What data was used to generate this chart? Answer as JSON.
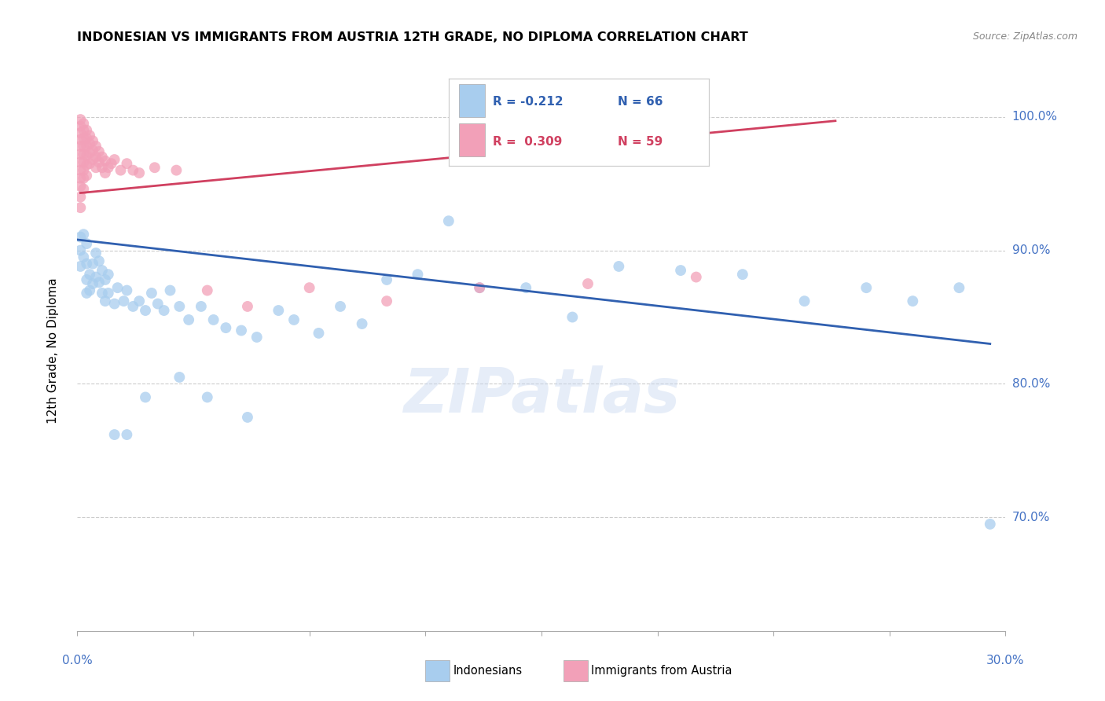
{
  "title": "INDONESIAN VS IMMIGRANTS FROM AUSTRIA 12TH GRADE, NO DIPLOMA CORRELATION CHART",
  "source": "Source: ZipAtlas.com",
  "ylabel": "12th Grade, No Diploma",
  "ytick_labels": [
    "70.0%",
    "80.0%",
    "90.0%",
    "100.0%"
  ],
  "ytick_values": [
    0.7,
    0.8,
    0.9,
    1.0
  ],
  "xlim": [
    0.0,
    0.3
  ],
  "ylim": [
    0.615,
    1.035
  ],
  "blue_color": "#A8CDEE",
  "pink_color": "#F2A0B8",
  "blue_line_color": "#3060B0",
  "pink_line_color": "#D04060",
  "watermark_text": "ZIPatlas",
  "indonesians_x": [
    0.001,
    0.001,
    0.001,
    0.002,
    0.002,
    0.003,
    0.003,
    0.003,
    0.003,
    0.004,
    0.004,
    0.005,
    0.005,
    0.006,
    0.006,
    0.007,
    0.007,
    0.008,
    0.008,
    0.009,
    0.009,
    0.01,
    0.01,
    0.012,
    0.013,
    0.015,
    0.016,
    0.018,
    0.02,
    0.022,
    0.024,
    0.026,
    0.028,
    0.03,
    0.033,
    0.036,
    0.04,
    0.044,
    0.048,
    0.053,
    0.058,
    0.065,
    0.07,
    0.078,
    0.085,
    0.092,
    0.1,
    0.11,
    0.12,
    0.13,
    0.145,
    0.16,
    0.175,
    0.195,
    0.215,
    0.235,
    0.255,
    0.27,
    0.285,
    0.295,
    0.055,
    0.042,
    0.033,
    0.022,
    0.016,
    0.012
  ],
  "indonesians_y": [
    0.91,
    0.9,
    0.888,
    0.912,
    0.895,
    0.905,
    0.89,
    0.878,
    0.868,
    0.882,
    0.87,
    0.89,
    0.875,
    0.898,
    0.88,
    0.892,
    0.876,
    0.885,
    0.868,
    0.878,
    0.862,
    0.882,
    0.868,
    0.86,
    0.872,
    0.862,
    0.87,
    0.858,
    0.862,
    0.855,
    0.868,
    0.86,
    0.855,
    0.87,
    0.858,
    0.848,
    0.858,
    0.848,
    0.842,
    0.84,
    0.835,
    0.855,
    0.848,
    0.838,
    0.858,
    0.845,
    0.878,
    0.882,
    0.922,
    0.872,
    0.872,
    0.85,
    0.888,
    0.885,
    0.882,
    0.862,
    0.872,
    0.862,
    0.872,
    0.695,
    0.775,
    0.79,
    0.805,
    0.79,
    0.762,
    0.762
  ],
  "austria_x": [
    0.001,
    0.001,
    0.001,
    0.001,
    0.001,
    0.001,
    0.001,
    0.001,
    0.001,
    0.001,
    0.001,
    0.001,
    0.002,
    0.002,
    0.002,
    0.002,
    0.002,
    0.002,
    0.002,
    0.002,
    0.002,
    0.003,
    0.003,
    0.003,
    0.003,
    0.003,
    0.003,
    0.004,
    0.004,
    0.004,
    0.004,
    0.005,
    0.005,
    0.005,
    0.006,
    0.006,
    0.006,
    0.007,
    0.007,
    0.008,
    0.008,
    0.009,
    0.009,
    0.01,
    0.011,
    0.012,
    0.014,
    0.016,
    0.018,
    0.02,
    0.025,
    0.032,
    0.042,
    0.055,
    0.075,
    0.1,
    0.13,
    0.165,
    0.2
  ],
  "austria_y": [
    0.998,
    0.993,
    0.988,
    0.983,
    0.978,
    0.972,
    0.966,
    0.96,
    0.954,
    0.948,
    0.94,
    0.932,
    0.995,
    0.99,
    0.984,
    0.978,
    0.972,
    0.966,
    0.96,
    0.954,
    0.946,
    0.99,
    0.984,
    0.978,
    0.971,
    0.964,
    0.956,
    0.986,
    0.98,
    0.973,
    0.965,
    0.982,
    0.975,
    0.968,
    0.978,
    0.97,
    0.962,
    0.974,
    0.966,
    0.97,
    0.962,
    0.967,
    0.958,
    0.962,
    0.965,
    0.968,
    0.96,
    0.965,
    0.96,
    0.958,
    0.962,
    0.96,
    0.87,
    0.858,
    0.872,
    0.862,
    0.872,
    0.875,
    0.88
  ],
  "blue_trend_x": [
    0.0,
    0.295
  ],
  "blue_trend_y": [
    0.908,
    0.83
  ],
  "pink_trend_x": [
    0.001,
    0.245
  ],
  "pink_trend_y": [
    0.943,
    0.997
  ]
}
